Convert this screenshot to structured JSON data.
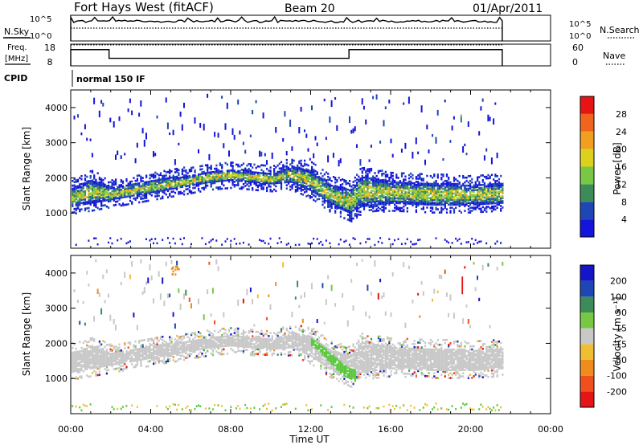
{
  "header": {
    "station": "Fort Hays West (fitACF)",
    "beam": "Beam 20",
    "date": "01/Apr/2011"
  },
  "labels": {
    "n_sky": "N.Sky",
    "n_search": "N.Search",
    "freq": "Freq.",
    "freq_unit": "[MHz]",
    "nave": "Nave",
    "cpid": "CPID",
    "cpid_value": "normal 150 IF"
  },
  "colors": {
    "scatter_blue": "#1e3cc8",
    "scatter_gray": "#c8c8c8",
    "scatter_green": "#5ac83c"
  },
  "chart_data": [
    {
      "type": "line",
      "panel": "noise",
      "left_ticks": [
        "10^5",
        "10^0"
      ],
      "right_ticks": [
        "10^5",
        "10^0"
      ],
      "series": [
        {
          "name": "N.Sky",
          "style": "solid"
        },
        {
          "name": "N.Search",
          "style": "dotted"
        }
      ],
      "xlim": [
        "00:00",
        "24:00"
      ],
      "data_end": "21:35"
    },
    {
      "type": "line",
      "panel": "frequency",
      "left_ticks": [
        8,
        18
      ],
      "right_ticks": [
        0,
        60
      ],
      "freq_steps": [
        {
          "x": "00:00",
          "y": 15.5
        },
        {
          "x": "01:55",
          "y": 11.5
        },
        {
          "x": "13:55",
          "y": 15.5
        },
        {
          "x": "21:35",
          "y": 8
        }
      ],
      "nave_level": 58
    },
    {
      "type": "heatmap",
      "panel": "power",
      "ylabel": "Slant Range [km]",
      "ylim": [
        0,
        4500
      ],
      "yticks": [
        1000,
        2000,
        3000,
        4000
      ],
      "colorbar": {
        "label": "Power [dB]",
        "ticks": [
          4,
          8,
          12,
          16,
          20,
          24,
          28
        ],
        "colors": [
          "#1414dc",
          "#1e46b4",
          "#3c8c5a",
          "#78c846",
          "#dcd21e",
          "#f0a01e",
          "#f0641e",
          "#e61414"
        ]
      },
      "band": [
        {
          "x": 0.0,
          "lo": 1150,
          "hi": 1750
        },
        {
          "x": 0.5,
          "lo": 1200,
          "hi": 1800
        },
        {
          "x": 1.0,
          "lo": 1250,
          "hi": 1950
        },
        {
          "x": 2.0,
          "lo": 1350,
          "hi": 1700
        },
        {
          "x": 3.0,
          "lo": 1450,
          "hi": 1800
        },
        {
          "x": 4.0,
          "lo": 1550,
          "hi": 1900
        },
        {
          "x": 5.0,
          "lo": 1650,
          "hi": 2000
        },
        {
          "x": 6.0,
          "lo": 1750,
          "hi": 2050
        },
        {
          "x": 7.0,
          "lo": 1850,
          "hi": 2150
        },
        {
          "x": 8.0,
          "lo": 1900,
          "hi": 2200
        },
        {
          "x": 9.0,
          "lo": 1850,
          "hi": 2150
        },
        {
          "x": 10.0,
          "lo": 1800,
          "hi": 2100
        },
        {
          "x": 11.0,
          "lo": 1850,
          "hi": 2300
        },
        {
          "x": 12.0,
          "lo": 1600,
          "hi": 2200
        },
        {
          "x": 13.0,
          "lo": 1200,
          "hi": 1800
        },
        {
          "x": 14.0,
          "lo": 950,
          "hi": 1650
        },
        {
          "x": 14.5,
          "lo": 1150,
          "hi": 2050
        },
        {
          "x": 16.0,
          "lo": 1250,
          "hi": 1900
        },
        {
          "x": 18.0,
          "lo": 1200,
          "hi": 1850
        },
        {
          "x": 20.0,
          "lo": 1200,
          "hi": 1800
        },
        {
          "x": 21.5,
          "lo": 1250,
          "hi": 1850
        }
      ]
    },
    {
      "type": "heatmap",
      "panel": "velocity",
      "xlabel": "Time UT",
      "ylabel": "Slant Range [km]",
      "ylim": [
        0,
        4500
      ],
      "yticks": [
        1000,
        2000,
        3000,
        4000
      ],
      "colorbar": {
        "label": "Velocity [m s⁻¹]",
        "ticks": [
          -200,
          -100,
          -50,
          -15,
          15,
          50,
          100,
          200
        ],
        "colors": [
          "#e61414",
          "#f0501e",
          "#f08c1e",
          "#f0be32",
          "#c8c8c8",
          "#78c846",
          "#3c8c5a",
          "#1e46b4",
          "#1414c8"
        ]
      },
      "green_streak": [
        {
          "x": 12.0,
          "lo": 1900,
          "hi": 2150
        },
        {
          "x": 12.5,
          "lo": 1700,
          "hi": 1950
        },
        {
          "x": 13.0,
          "lo": 1400,
          "hi": 1700
        },
        {
          "x": 13.5,
          "lo": 1100,
          "hi": 1450
        },
        {
          "x": 14.0,
          "lo": 950,
          "hi": 1250
        }
      ]
    }
  ],
  "x_axis": {
    "ticks": [
      "00:00",
      "04:00",
      "08:00",
      "12:00",
      "16:00",
      "20:00",
      "00:00"
    ],
    "label": "Time UT"
  }
}
